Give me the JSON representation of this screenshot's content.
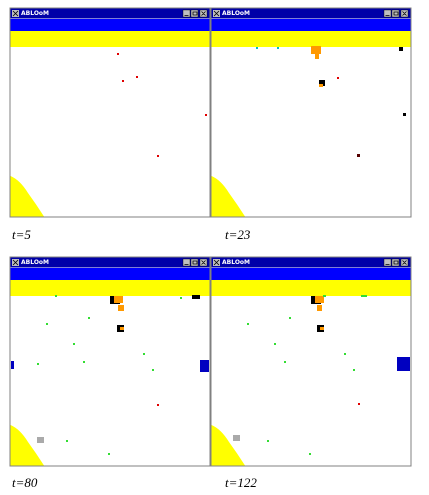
{
  "windows": [
    {
      "title": "ABLOoM",
      "caption": "t=5"
    },
    {
      "title": "ABLOoM",
      "caption": "t=23"
    },
    {
      "title": "ABLOoM",
      "caption": "t=80"
    },
    {
      "title": "ABLOoM",
      "caption": "t=122"
    }
  ]
}
